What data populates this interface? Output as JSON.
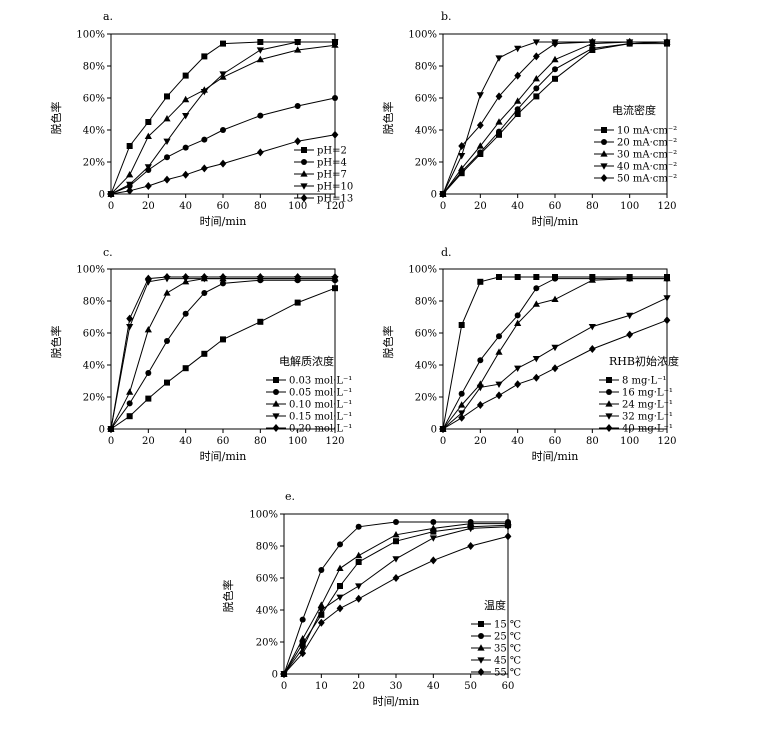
{
  "chart_data": [
    {
      "panel": "a.",
      "type": "line",
      "xlabel": "时间/min",
      "ylabel": "脱色率",
      "xticks": [
        0,
        20,
        40,
        60,
        80,
        100,
        120
      ],
      "yticks": [
        "0",
        "20%",
        "40%",
        "60%",
        "80%",
        "100%"
      ],
      "xlim": [
        0,
        120
      ],
      "ylim": [
        0,
        100
      ],
      "legend_title": "",
      "legend_position": "right",
      "series": [
        {
          "name": "pH=2",
          "marker": "square",
          "x": [
            0,
            10,
            20,
            30,
            40,
            50,
            60,
            80,
            100,
            120
          ],
          "y": [
            0,
            30,
            45,
            61,
            74,
            86,
            94,
            95,
            95,
            95
          ]
        },
        {
          "name": "pH=4",
          "marker": "circle",
          "x": [
            0,
            10,
            20,
            30,
            40,
            50,
            60,
            80,
            100,
            120
          ],
          "y": [
            0,
            5,
            15,
            23,
            29,
            34,
            40,
            49,
            55,
            60
          ]
        },
        {
          "name": "pH=7",
          "marker": "triangle-up",
          "x": [
            0,
            10,
            20,
            30,
            40,
            50,
            60,
            80,
            100,
            120
          ],
          "y": [
            0,
            12,
            36,
            47,
            59,
            65,
            73,
            84,
            90,
            93
          ]
        },
        {
          "name": "pH=10",
          "marker": "triangle-down",
          "x": [
            0,
            10,
            20,
            30,
            40,
            50,
            60,
            80,
            100,
            120
          ],
          "y": [
            0,
            6,
            17,
            33,
            49,
            64,
            75,
            90,
            95,
            95
          ]
        },
        {
          "name": "pH=13",
          "marker": "diamond",
          "x": [
            0,
            10,
            20,
            30,
            40,
            50,
            60,
            80,
            100,
            120
          ],
          "y": [
            0,
            2,
            5,
            9,
            12,
            16,
            19,
            26,
            33,
            37
          ]
        }
      ]
    },
    {
      "panel": "b.",
      "type": "line",
      "xlabel": "时间/min",
      "ylabel": "脱色率",
      "xticks": [
        0,
        20,
        40,
        60,
        80,
        100,
        120
      ],
      "yticks": [
        "0",
        "20%",
        "40%",
        "60%",
        "80%",
        "100%"
      ],
      "xlim": [
        0,
        120
      ],
      "ylim": [
        0,
        100
      ],
      "legend_title": "电流密度",
      "legend_position": "right",
      "series": [
        {
          "name": "10 mA·cm⁻²",
          "marker": "square",
          "x": [
            0,
            10,
            20,
            30,
            40,
            50,
            60,
            80,
            100,
            120
          ],
          "y": [
            0,
            13,
            25,
            37,
            50,
            61,
            72,
            90,
            94,
            94
          ]
        },
        {
          "name": "20 mA·cm⁻²",
          "marker": "circle",
          "x": [
            0,
            10,
            20,
            30,
            40,
            50,
            60,
            80,
            100,
            120
          ],
          "y": [
            0,
            14,
            26,
            39,
            53,
            66,
            78,
            91,
            94,
            95
          ]
        },
        {
          "name": "30 mA·cm⁻²",
          "marker": "triangle-up",
          "x": [
            0,
            10,
            20,
            30,
            40,
            50,
            60,
            80,
            100,
            120
          ],
          "y": [
            0,
            16,
            30,
            45,
            58,
            72,
            84,
            94,
            95,
            95
          ]
        },
        {
          "name": "40 mA·cm⁻²",
          "marker": "triangle-down",
          "x": [
            0,
            10,
            20,
            30,
            40,
            50,
            60,
            80,
            100,
            120
          ],
          "y": [
            0,
            24,
            62,
            85,
            91,
            95,
            95,
            95,
            95,
            95
          ]
        },
        {
          "name": "50 mA·cm⁻²",
          "marker": "diamond",
          "x": [
            0,
            10,
            20,
            30,
            40,
            50,
            60,
            80,
            100,
            120
          ],
          "y": [
            0,
            30,
            43,
            61,
            74,
            86,
            94,
            95,
            95,
            95
          ]
        }
      ]
    },
    {
      "panel": "c.",
      "type": "line",
      "xlabel": "时间/min",
      "ylabel": "脱色率",
      "xticks": [
        0,
        20,
        40,
        60,
        80,
        100,
        120
      ],
      "yticks": [
        "0",
        "20%",
        "40%",
        "60%",
        "80%",
        "100%"
      ],
      "xlim": [
        0,
        120
      ],
      "ylim": [
        0,
        100
      ],
      "legend_title": "电解质浓度",
      "legend_position": "right",
      "series": [
        {
          "name": "0.03 mol·L⁻¹",
          "marker": "square",
          "x": [
            0,
            10,
            20,
            30,
            40,
            50,
            60,
            80,
            100,
            120
          ],
          "y": [
            0,
            8,
            19,
            29,
            38,
            47,
            56,
            67,
            79,
            88
          ]
        },
        {
          "name": "0.05 mol·L⁻¹",
          "marker": "circle",
          "x": [
            0,
            10,
            20,
            30,
            40,
            50,
            60,
            80,
            100,
            120
          ],
          "y": [
            0,
            16,
            35,
            55,
            72,
            85,
            91,
            93,
            93,
            93
          ]
        },
        {
          "name": "0.10 mol·L⁻¹",
          "marker": "triangle-up",
          "x": [
            0,
            10,
            20,
            30,
            40,
            50,
            60,
            80,
            100,
            120
          ],
          "y": [
            0,
            23,
            62,
            85,
            92,
            94,
            94,
            94,
            94,
            94
          ]
        },
        {
          "name": "0.15 mol·L⁻¹",
          "marker": "triangle-down",
          "x": [
            0,
            10,
            20,
            30,
            40,
            50,
            60,
            80,
            100,
            120
          ],
          "y": [
            0,
            64,
            92,
            94,
            94,
            94,
            94,
            94,
            94,
            94
          ]
        },
        {
          "name": "0.20 mol·L⁻¹",
          "marker": "diamond",
          "x": [
            0,
            10,
            20,
            30,
            40,
            50,
            60,
            80,
            100,
            120
          ],
          "y": [
            0,
            69,
            94,
            95,
            95,
            95,
            95,
            95,
            95,
            95
          ]
        }
      ]
    },
    {
      "panel": "d.",
      "type": "line",
      "xlabel": "时间/min",
      "ylabel": "脱色率",
      "xticks": [
        0,
        20,
        40,
        60,
        80,
        100,
        120
      ],
      "yticks": [
        "0",
        "20%",
        "40%",
        "60%",
        "80%",
        "100%"
      ],
      "xlim": [
        0,
        120
      ],
      "ylim": [
        0,
        100
      ],
      "legend_title": "RHB初始浓度",
      "legend_position": "right",
      "series": [
        {
          "name": "8 mg·L⁻¹",
          "marker": "square",
          "x": [
            0,
            10,
            20,
            30,
            40,
            50,
            60,
            80,
            100,
            120
          ],
          "y": [
            0,
            65,
            92,
            95,
            95,
            95,
            95,
            95,
            95,
            95
          ]
        },
        {
          "name": "16 mg·L⁻¹",
          "marker": "circle",
          "x": [
            0,
            10,
            20,
            30,
            40,
            50,
            60,
            80,
            100,
            120
          ],
          "y": [
            0,
            22,
            43,
            58,
            71,
            88,
            94,
            94,
            94,
            94
          ]
        },
        {
          "name": "24 mg·L⁻¹",
          "marker": "triangle-up",
          "x": [
            0,
            10,
            20,
            30,
            40,
            50,
            60,
            80,
            100,
            120
          ],
          "y": [
            0,
            15,
            28,
            48,
            66,
            78,
            81,
            93,
            94,
            94
          ]
        },
        {
          "name": "32 mg·L⁻¹",
          "marker": "triangle-down",
          "x": [
            0,
            10,
            20,
            30,
            40,
            50,
            60,
            80,
            100,
            120
          ],
          "y": [
            0,
            10,
            26,
            28,
            38,
            44,
            51,
            64,
            71,
            82
          ]
        },
        {
          "name": "40 mg·L⁻¹",
          "marker": "diamond",
          "x": [
            0,
            10,
            20,
            30,
            40,
            50,
            60,
            80,
            100,
            120
          ],
          "y": [
            0,
            7,
            15,
            21,
            28,
            32,
            38,
            50,
            59,
            68
          ]
        }
      ]
    },
    {
      "panel": "e.",
      "type": "line",
      "xlabel": "时间/min",
      "ylabel": "脱色率",
      "xticks": [
        0,
        10,
        20,
        30,
        40,
        50,
        60
      ],
      "yticks": [
        "0",
        "20%",
        "40%",
        "60%",
        "80%",
        "100%"
      ],
      "xlim": [
        0,
        60
      ],
      "ylim": [
        0,
        100
      ],
      "legend_title": "温度",
      "legend_position": "right",
      "series": [
        {
          "name": "15 ℃",
          "marker": "square",
          "x": [
            0,
            5,
            10,
            15,
            20,
            30,
            40,
            50,
            60
          ],
          "y": [
            0,
            19,
            37,
            55,
            70,
            83,
            89,
            92,
            93
          ]
        },
        {
          "name": "25 ℃",
          "marker": "circle",
          "x": [
            0,
            5,
            10,
            15,
            20,
            30,
            40,
            50,
            60
          ],
          "y": [
            0,
            34,
            65,
            81,
            92,
            95,
            95,
            95,
            95
          ]
        },
        {
          "name": "35 ℃",
          "marker": "triangle-up",
          "x": [
            0,
            5,
            10,
            15,
            20,
            30,
            40,
            50,
            60
          ],
          "y": [
            0,
            22,
            43,
            66,
            74,
            87,
            91,
            94,
            94
          ]
        },
        {
          "name": "45 ℃",
          "marker": "triangle-down",
          "x": [
            0,
            5,
            10,
            15,
            20,
            30,
            40,
            50,
            60
          ],
          "y": [
            0,
            16,
            40,
            48,
            55,
            72,
            85,
            91,
            92
          ]
        },
        {
          "name": "55 ℃",
          "marker": "diamond",
          "x": [
            0,
            5,
            10,
            15,
            20,
            30,
            40,
            50,
            60
          ],
          "y": [
            0,
            13,
            32,
            41,
            47,
            60,
            71,
            80,
            86
          ]
        }
      ]
    }
  ]
}
